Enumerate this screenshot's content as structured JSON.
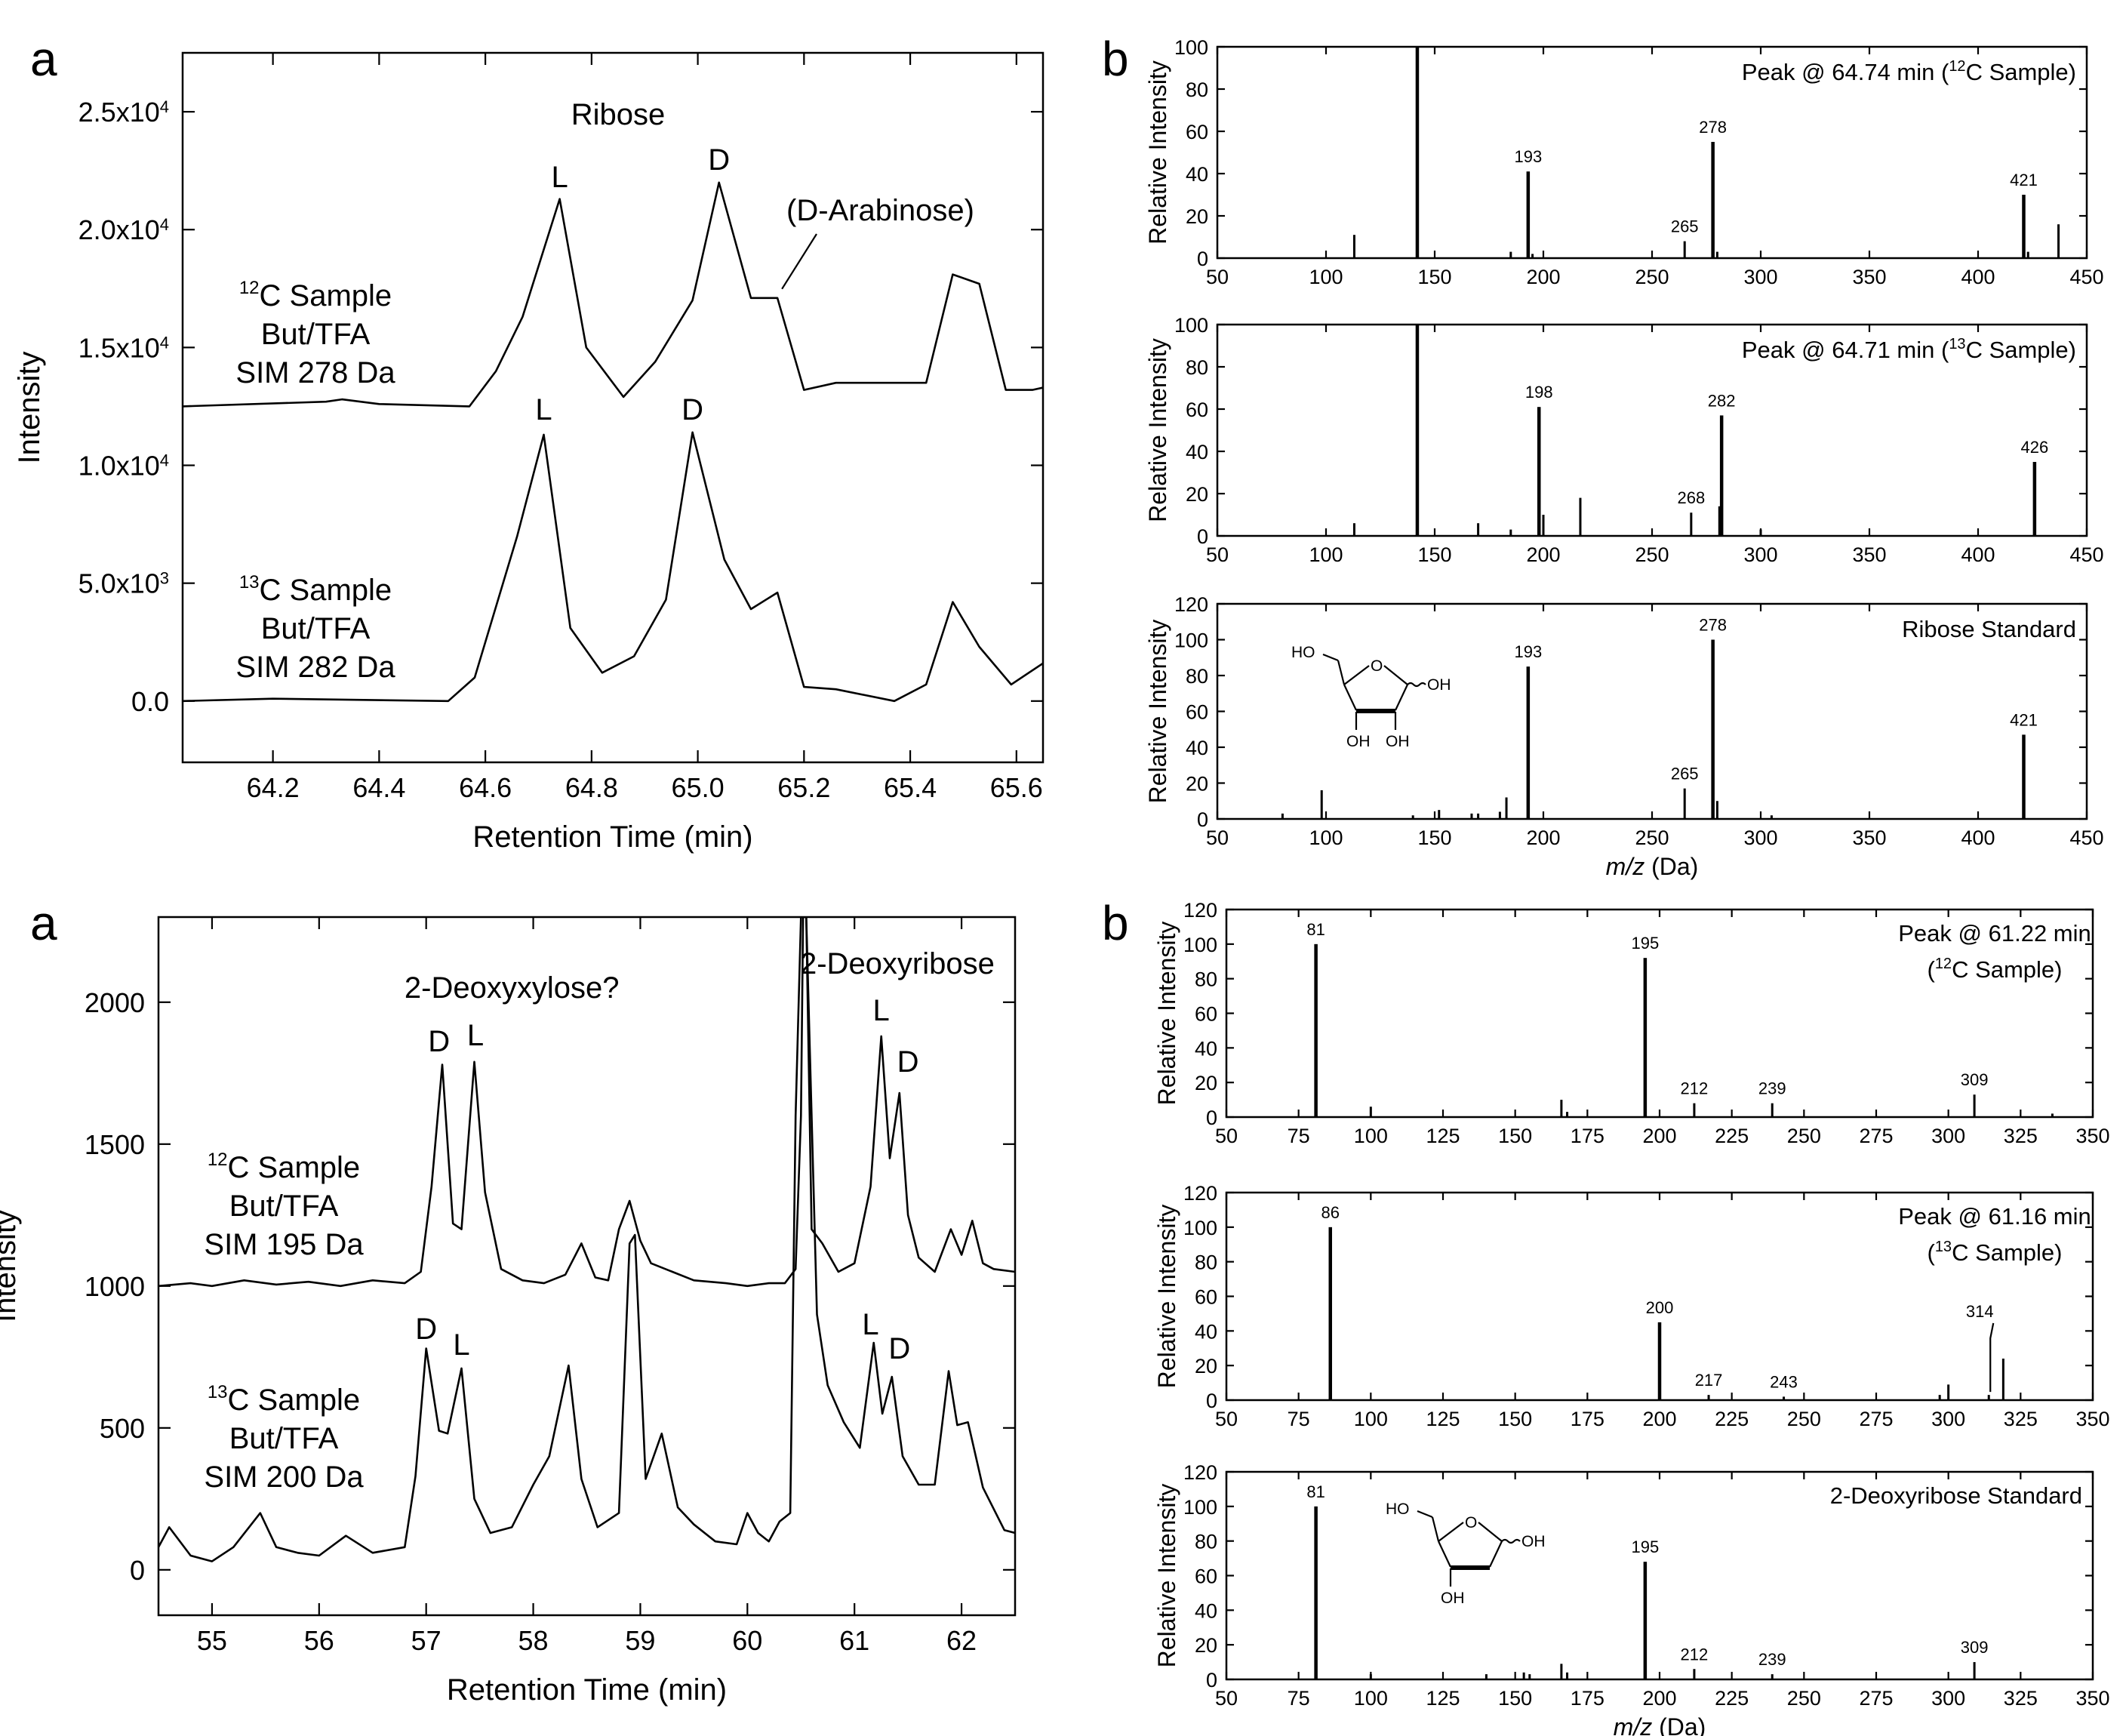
{
  "panels": {
    "top_left_letter": "a",
    "top_right_letter": "b",
    "bottom_left_letter": "a",
    "bottom_right_letter": "b"
  },
  "chart_data": [
    {
      "id": "ribose-chromatogram",
      "type": "line",
      "xlabel": "Retention Time (min)",
      "ylabel": "Intensity",
      "xlim": [
        64.03,
        65.65
      ],
      "ylim": [
        -2600,
        27500
      ],
      "xticks": [
        64.2,
        64.4,
        64.6,
        64.8,
        65.0,
        65.2,
        65.4,
        65.6
      ],
      "xtick_labels": [
        "64.2",
        "64.4",
        "64.6",
        "64.8",
        "65.0",
        "65.2",
        "65.4",
        "65.6"
      ],
      "yticks": [
        0,
        5000,
        10000,
        15000,
        20000,
        25000
      ],
      "ytick_labels": [
        {
          "mant": "0.0",
          "exp": ""
        },
        {
          "mant": "5.0x10",
          "exp": "3"
        },
        {
          "mant": "1.0x10",
          "exp": "4"
        },
        {
          "mant": "1.5x10",
          "exp": "4"
        },
        {
          "mant": "2.0x10",
          "exp": "4"
        },
        {
          "mant": "2.5x10",
          "exp": "4"
        }
      ],
      "series": [
        {
          "label_iso": "12",
          "label_line1": "C Sample",
          "label_line2": "But/TFA",
          "label_line3": "SIM 278 Da",
          "x": [
            64.03,
            64.3,
            64.33,
            64.4,
            64.57,
            64.62,
            64.67,
            64.74,
            64.79,
            64.86,
            64.92,
            64.99,
            65.04,
            65.1,
            65.15,
            65.2,
            65.26,
            65.37,
            65.43,
            65.48,
            65.53,
            65.58,
            65.63,
            65.65
          ],
          "y": [
            12500,
            12700,
            12800,
            12600,
            12500,
            14000,
            16300,
            21300,
            15000,
            12900,
            14400,
            17000,
            22000,
            17100,
            17100,
            13200,
            13500,
            13500,
            13500,
            18100,
            17700,
            13200,
            13200,
            13300
          ]
        },
        {
          "label_iso": "13",
          "label_line1": "C Sample",
          "label_line2": "But/TFA",
          "label_line3": "SIM 282 Da",
          "x": [
            64.03,
            64.2,
            64.53,
            64.58,
            64.66,
            64.71,
            64.76,
            64.82,
            64.88,
            64.94,
            64.99,
            65.05,
            65.1,
            65.15,
            65.2,
            65.26,
            65.37,
            65.43,
            65.48,
            65.53,
            65.59,
            65.65
          ],
          "y": [
            0,
            100,
            0,
            1000,
            7000,
            11300,
            3100,
            1200,
            1900,
            4300,
            11400,
            6000,
            3900,
            4600,
            600,
            500,
            0,
            700,
            4200,
            2300,
            700,
            1600
          ]
        }
      ],
      "annotations": {
        "title": "Ribose",
        "peaks_top": [
          "L",
          "D"
        ],
        "peaks_bottom": [
          "L",
          "D"
        ],
        "shoulder": "(D-Arabinose)"
      }
    },
    {
      "id": "ribose-ms-12c",
      "type": "bar",
      "xlabel": "",
      "ylabel": "Relative Intensity",
      "xlim": [
        50,
        450
      ],
      "ylim": [
        0,
        100
      ],
      "xticks": [
        50,
        100,
        150,
        200,
        250,
        300,
        350,
        400,
        450
      ],
      "yticks": [
        0,
        20,
        40,
        60,
        80,
        100
      ],
      "title_pre": "Peak @ 64.74 min (",
      "title_iso": "12",
      "title_post": "C Sample)",
      "bars": [
        {
          "mz": 113,
          "v": 11
        },
        {
          "mz": 142,
          "v": 100
        },
        {
          "mz": 185,
          "v": 3
        },
        {
          "mz": 193,
          "v": 41
        },
        {
          "mz": 195,
          "v": 2
        },
        {
          "mz": 265,
          "v": 8
        },
        {
          "mz": 278,
          "v": 55
        },
        {
          "mz": 280,
          "v": 3
        },
        {
          "mz": 421,
          "v": 30
        },
        {
          "mz": 423,
          "v": 3
        },
        {
          "mz": 437,
          "v": 16
        }
      ],
      "labels": [
        {
          "mz": 193,
          "text": "193"
        },
        {
          "mz": 265,
          "text": "265"
        },
        {
          "mz": 278,
          "text": "278"
        },
        {
          "mz": 421,
          "text": "421"
        }
      ]
    },
    {
      "id": "ribose-ms-13c",
      "type": "bar",
      "xlabel": "",
      "ylabel": "Relative Intensity",
      "xlim": [
        50,
        450
      ],
      "ylim": [
        0,
        100
      ],
      "xticks": [
        50,
        100,
        150,
        200,
        250,
        300,
        350,
        400,
        450
      ],
      "yticks": [
        0,
        20,
        40,
        60,
        80,
        100
      ],
      "title_pre": "Peak @ 64.71 min (",
      "title_iso": "13",
      "title_post": "C Sample)",
      "bars": [
        {
          "mz": 113,
          "v": 6
        },
        {
          "mz": 142,
          "v": 100
        },
        {
          "mz": 170,
          "v": 6
        },
        {
          "mz": 185,
          "v": 3
        },
        {
          "mz": 198,
          "v": 61
        },
        {
          "mz": 200,
          "v": 10
        },
        {
          "mz": 217,
          "v": 18
        },
        {
          "mz": 268,
          "v": 11
        },
        {
          "mz": 281,
          "v": 14
        },
        {
          "mz": 282,
          "v": 57
        },
        {
          "mz": 300,
          "v": 3
        },
        {
          "mz": 426,
          "v": 35
        }
      ],
      "labels": [
        {
          "mz": 198,
          "text": "198"
        },
        {
          "mz": 268,
          "text": "268"
        },
        {
          "mz": 282,
          "text": "282"
        },
        {
          "mz": 426,
          "text": "426"
        }
      ]
    },
    {
      "id": "ribose-ms-standard",
      "type": "bar",
      "xlabel_italic": "m/z",
      "xlabel_rest": " (Da)",
      "ylabel": "Relative Intensity",
      "xlim": [
        50,
        450
      ],
      "ylim": [
        0,
        120
      ],
      "xticks": [
        50,
        100,
        150,
        200,
        250,
        300,
        350,
        400,
        450
      ],
      "yticks": [
        0,
        20,
        40,
        60,
        80,
        100,
        120
      ],
      "title_pre": "Ribose Standard",
      "title_iso": "",
      "title_post": "",
      "bars": [
        {
          "mz": 80,
          "v": 3
        },
        {
          "mz": 98,
          "v": 16
        },
        {
          "mz": 140,
          "v": 2
        },
        {
          "mz": 152,
          "v": 5
        },
        {
          "mz": 167,
          "v": 3
        },
        {
          "mz": 170,
          "v": 3
        },
        {
          "mz": 180,
          "v": 4
        },
        {
          "mz": 183,
          "v": 12
        },
        {
          "mz": 193,
          "v": 85
        },
        {
          "mz": 265,
          "v": 17
        },
        {
          "mz": 278,
          "v": 100
        },
        {
          "mz": 280,
          "v": 10
        },
        {
          "mz": 305,
          "v": 2
        },
        {
          "mz": 421,
          "v": 47
        }
      ],
      "labels": [
        {
          "mz": 193,
          "text": "193"
        },
        {
          "mz": 265,
          "text": "265"
        },
        {
          "mz": 278,
          "text": "278"
        },
        {
          "mz": 421,
          "text": "421"
        }
      ],
      "structure": {
        "ho": "HO",
        "o": "O",
        "oh_ring": "OH",
        "oh1": "OH",
        "oh2": "OH"
      }
    },
    {
      "id": "deoxy-chromatogram",
      "type": "line",
      "xlabel": "Retention Time (min)",
      "ylabel": "Intensity",
      "xlim": [
        54.5,
        62.5
      ],
      "ylim": [
        -160,
        2300
      ],
      "xticks": [
        55,
        56,
        57,
        58,
        59,
        60,
        61,
        62
      ],
      "xtick_labels": [
        "55",
        "56",
        "57",
        "58",
        "59",
        "60",
        "61",
        "62"
      ],
      "yticks": [
        0,
        500,
        1000,
        1500,
        2000
      ],
      "ytick_labels": [
        {
          "mant": "0",
          "exp": ""
        },
        {
          "mant": "500",
          "exp": ""
        },
        {
          "mant": "1000",
          "exp": ""
        },
        {
          "mant": "1500",
          "exp": ""
        },
        {
          "mant": "2000",
          "exp": ""
        }
      ],
      "series": [
        {
          "label_iso": "12",
          "label_line1": "C Sample",
          "label_line2": "But/TFA",
          "label_line3": "SIM 195 Da",
          "x": [
            54.5,
            54.8,
            55.0,
            55.3,
            55.6,
            55.9,
            56.2,
            56.5,
            56.8,
            56.95,
            57.05,
            57.15,
            57.25,
            57.33,
            57.45,
            57.55,
            57.7,
            57.9,
            58.1,
            58.3,
            58.45,
            58.58,
            58.7,
            58.8,
            58.9,
            59.0,
            59.1,
            59.3,
            59.5,
            59.8,
            60.0,
            60.2,
            60.35,
            60.45,
            60.5,
            60.52,
            60.55,
            60.6,
            60.7,
            60.85,
            61.0,
            61.15,
            61.25,
            61.33,
            61.42,
            61.5,
            61.6,
            61.75,
            61.9,
            62.0,
            62.1,
            62.2,
            62.3,
            62.5
          ],
          "y": [
            1000,
            1010,
            1000,
            1020,
            1005,
            1015,
            1000,
            1020,
            1010,
            1050,
            1350,
            1780,
            1220,
            1200,
            1790,
            1330,
            1060,
            1020,
            1010,
            1040,
            1150,
            1030,
            1020,
            1200,
            1300,
            1160,
            1080,
            1050,
            1020,
            1010,
            1000,
            1010,
            1010,
            1060,
            1600,
            2300,
            2300,
            1200,
            1150,
            1050,
            1080,
            1350,
            1880,
            1450,
            1680,
            1250,
            1100,
            1050,
            1200,
            1110,
            1230,
            1080,
            1060,
            1050
          ]
        },
        {
          "label_iso": "13",
          "label_line1": "C Sample",
          "label_line2": "But/TFA",
          "label_line3": "SIM 200 Da",
          "x": [
            54.5,
            54.6,
            54.8,
            55.0,
            55.2,
            55.45,
            55.6,
            55.8,
            56.0,
            56.25,
            56.5,
            56.8,
            56.9,
            57.0,
            57.12,
            57.2,
            57.33,
            57.45,
            57.6,
            57.8,
            58.0,
            58.15,
            58.33,
            58.45,
            58.6,
            58.8,
            58.9,
            58.95,
            59.05,
            59.2,
            59.35,
            59.5,
            59.7,
            59.9,
            60.0,
            60.1,
            60.2,
            60.3,
            60.4,
            60.45,
            60.5,
            60.55,
            60.65,
            60.75,
            60.9,
            61.05,
            61.18,
            61.26,
            61.35,
            61.45,
            61.6,
            61.75,
            61.88,
            61.96,
            62.06,
            62.2,
            62.4,
            62.5
          ],
          "y": [
            80,
            150,
            50,
            30,
            80,
            200,
            80,
            60,
            50,
            120,
            60,
            80,
            330,
            780,
            490,
            480,
            710,
            250,
            130,
            150,
            300,
            400,
            720,
            320,
            150,
            200,
            1150,
            1180,
            320,
            480,
            220,
            160,
            100,
            90,
            200,
            130,
            100,
            170,
            200,
            1600,
            2300,
            2300,
            900,
            650,
            520,
            430,
            800,
            550,
            680,
            400,
            300,
            300,
            700,
            510,
            520,
            290,
            140,
            130
          ]
        }
      ],
      "annotations": {
        "title_left": "2-Deoxyxylose?",
        "title_right": "2-Deoxyribose",
        "peaks_top_left": [
          "D",
          "L"
        ],
        "peaks_top_right": [
          "L",
          "D"
        ],
        "peaks_bottom_left": [
          "D",
          "L"
        ],
        "peaks_bottom_right": [
          "L",
          "D"
        ]
      }
    },
    {
      "id": "deoxy-ms-12c",
      "type": "bar",
      "xlabel": "",
      "ylabel": "Relative Intensity",
      "xlim": [
        50,
        350
      ],
      "ylim": [
        0,
        120
      ],
      "xticks": [
        50,
        75,
        100,
        125,
        150,
        175,
        200,
        225,
        250,
        275,
        300,
        325,
        350
      ],
      "yticks": [
        0,
        20,
        40,
        60,
        80,
        100,
        120
      ],
      "title_pre": "Peak @ 61.22 min",
      "title_iso": "12",
      "title_post": "C Sample)",
      "title_line2_pre": "(",
      "bars": [
        {
          "mz": 81,
          "v": 100
        },
        {
          "mz": 100,
          "v": 6
        },
        {
          "mz": 166,
          "v": 10
        },
        {
          "mz": 168,
          "v": 3
        },
        {
          "mz": 195,
          "v": 92
        },
        {
          "mz": 212,
          "v": 8
        },
        {
          "mz": 239,
          "v": 8
        },
        {
          "mz": 309,
          "v": 13
        },
        {
          "mz": 336,
          "v": 2
        }
      ],
      "labels": [
        {
          "mz": 81,
          "text": "81"
        },
        {
          "mz": 195,
          "text": "195"
        },
        {
          "mz": 212,
          "text": "212"
        },
        {
          "mz": 239,
          "text": "239"
        },
        {
          "mz": 309,
          "text": "309"
        }
      ]
    },
    {
      "id": "deoxy-ms-13c",
      "type": "bar",
      "xlabel": "",
      "ylabel": "Relative Intensity",
      "xlim": [
        50,
        350
      ],
      "ylim": [
        0,
        120
      ],
      "xticks": [
        50,
        75,
        100,
        125,
        150,
        175,
        200,
        225,
        250,
        275,
        300,
        325,
        350
      ],
      "yticks": [
        0,
        20,
        40,
        60,
        80,
        100,
        120
      ],
      "title_pre": "Peak @ 61.16 min",
      "title_iso": "13",
      "title_post": "C Sample)",
      "title_line2_pre": "(",
      "bars": [
        {
          "mz": 86,
          "v": 100
        },
        {
          "mz": 200,
          "v": 45
        },
        {
          "mz": 217,
          "v": 3
        },
        {
          "mz": 243,
          "v": 2
        },
        {
          "mz": 297,
          "v": 3
        },
        {
          "mz": 300,
          "v": 9
        },
        {
          "mz": 314,
          "v": 3
        },
        {
          "mz": 319,
          "v": 24
        }
      ],
      "labels": [
        {
          "mz": 86,
          "text": "86"
        },
        {
          "mz": 200,
          "text": "200"
        },
        {
          "mz": 217,
          "text": "217"
        },
        {
          "mz": 243,
          "text": "243"
        },
        {
          "mz": 314,
          "text": "314",
          "callout": true
        }
      ]
    },
    {
      "id": "deoxy-ms-standard",
      "type": "bar",
      "xlabel_italic": "m/z",
      "xlabel_rest": " (Da)",
      "ylabel": "Relative Intensity",
      "xlim": [
        50,
        350
      ],
      "ylim": [
        0,
        120
      ],
      "xticks": [
        50,
        75,
        100,
        125,
        150,
        175,
        200,
        225,
        250,
        275,
        300,
        325,
        350
      ],
      "yticks": [
        0,
        20,
        40,
        60,
        80,
        100,
        120
      ],
      "title_pre": "2-Deoxyribose Standard",
      "title_iso": "",
      "title_post": "",
      "bars": [
        {
          "mz": 81,
          "v": 100
        },
        {
          "mz": 100,
          "v": 3
        },
        {
          "mz": 140,
          "v": 3
        },
        {
          "mz": 153,
          "v": 4
        },
        {
          "mz": 155,
          "v": 3
        },
        {
          "mz": 166,
          "v": 9
        },
        {
          "mz": 168,
          "v": 4
        },
        {
          "mz": 195,
          "v": 68
        },
        {
          "mz": 212,
          "v": 6
        },
        {
          "mz": 239,
          "v": 3
        },
        {
          "mz": 309,
          "v": 10
        }
      ],
      "labels": [
        {
          "mz": 81,
          "text": "81"
        },
        {
          "mz": 195,
          "text": "195"
        },
        {
          "mz": 212,
          "text": "212"
        },
        {
          "mz": 239,
          "text": "239"
        },
        {
          "mz": 309,
          "text": "309"
        }
      ],
      "structure": {
        "ho": "HO",
        "o": "O",
        "oh_ring": "OH",
        "oh1": "OH"
      }
    }
  ]
}
